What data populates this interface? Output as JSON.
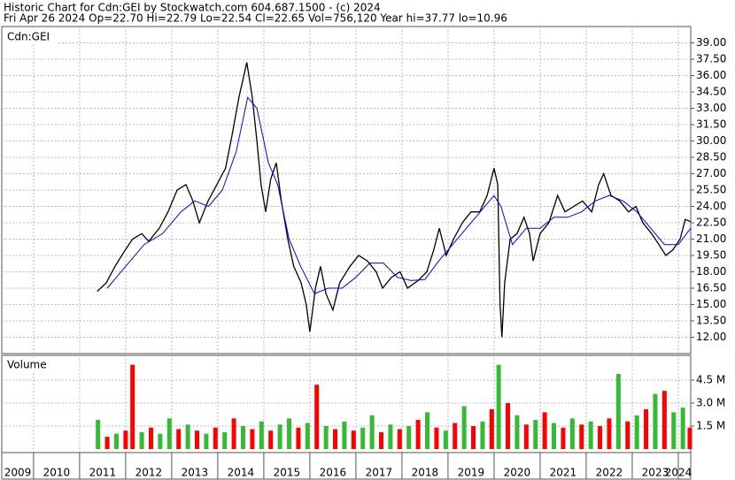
{
  "chart_data": [
    {
      "type": "line",
      "title": "Historic Chart for Cdn:GEI by Stockwatch.com 604.687.1500 - (c) 2024",
      "subtitle": "Fri Apr 26 2024  Op=22.70  Hi=22.79  Lo=22.54  Cl=22.65  Vol=756,120  Year hi=37.77  lo=10.96",
      "panel_label": "Cdn:GEI",
      "xlim": [
        2009.31,
        2024.27
      ],
      "ylim": [
        10.5,
        40.5
      ],
      "yticks": [
        {
          "value": 12,
          "label": "12.00"
        },
        {
          "value": 13.5,
          "label": "13.50"
        },
        {
          "value": 15,
          "label": "15.00"
        },
        {
          "value": 16.5,
          "label": "16.50"
        },
        {
          "value": 18,
          "label": "18.00"
        },
        {
          "value": 19.5,
          "label": "19.50"
        },
        {
          "value": 21,
          "label": "21.00"
        },
        {
          "value": 22.5,
          "label": "22.50"
        },
        {
          "value": 24,
          "label": "24.00"
        },
        {
          "value": 25.5,
          "label": "25.50"
        },
        {
          "value": 27,
          "label": "27.00"
        },
        {
          "value": 28.5,
          "label": "28.50"
        },
        {
          "value": 30,
          "label": "30.00"
        },
        {
          "value": 31.5,
          "label": "31.50"
        },
        {
          "value": 33,
          "label": "33.00"
        },
        {
          "value": 34.5,
          "label": "34.50"
        },
        {
          "value": 36,
          "label": "36.00"
        },
        {
          "value": 37.5,
          "label": "37.50"
        },
        {
          "value": 39,
          "label": "39.00"
        }
      ],
      "grid": true,
      "series": [
        {
          "color": "#000000",
          "x": [
            2011.38,
            2011.58,
            2011.77,
            2011.96,
            2012.15,
            2012.35,
            2012.5,
            2012.73,
            2012.92,
            2013.12,
            2013.31,
            2013.46,
            2013.6,
            2013.79,
            2013.98,
            2014.17,
            2014.31,
            2014.46,
            2014.63,
            2014.75,
            2014.85,
            2014.94,
            2015.04,
            2015.15,
            2015.27,
            2015.38,
            2015.52,
            2015.65,
            2015.81,
            2015.92,
            2016.0,
            2016.12,
            2016.23,
            2016.35,
            2016.5,
            2016.65,
            2016.87,
            2017.06,
            2017.25,
            2017.44,
            2017.58,
            2017.77,
            2017.96,
            2018.12,
            2018.35,
            2018.54,
            2018.69,
            2018.81,
            2018.96,
            2019.12,
            2019.31,
            2019.5,
            2019.69,
            2019.85,
            2020.0,
            2020.08,
            2020.13,
            2020.17,
            2020.23,
            2020.35,
            2020.5,
            2020.65,
            2020.77,
            2020.85,
            2021.0,
            2021.19,
            2021.38,
            2021.54,
            2021.73,
            2021.92,
            2022.12,
            2022.27,
            2022.38,
            2022.54,
            2022.73,
            2022.92,
            2023.08,
            2023.23,
            2023.42,
            2023.58,
            2023.73,
            2023.88,
            2024.04,
            2024.15,
            2024.27
          ],
          "values": [
            16.2,
            17,
            18.5,
            19.8,
            21,
            21.5,
            20.8,
            22,
            23.5,
            25.5,
            26,
            24.5,
            22.5,
            24.5,
            26,
            27.5,
            30.5,
            34,
            37.2,
            34,
            30,
            26,
            23.5,
            26.5,
            28,
            24.5,
            21,
            18.5,
            17,
            15,
            12.5,
            16.5,
            18.5,
            16,
            14.5,
            17,
            18.5,
            19.5,
            19,
            18,
            16.5,
            17.5,
            18,
            16.5,
            17.2,
            18,
            20,
            22,
            19.5,
            21,
            22.5,
            23.5,
            23.5,
            25,
            27.5,
            26,
            15,
            12,
            17,
            21,
            21.5,
            23,
            21.5,
            19,
            21.5,
            22.5,
            25,
            23.5,
            24,
            24.5,
            23.5,
            26,
            27,
            25,
            24.5,
            23.5,
            24,
            22.5,
            21.5,
            20.5,
            19.5,
            20,
            21,
            22.8,
            22.6
          ]
        },
        {
          "color": "#0000ff",
          "x": [
            2011.6,
            2012.0,
            2012.4,
            2012.8,
            2013.2,
            2013.5,
            2013.8,
            2014.1,
            2014.4,
            2014.65,
            2014.85,
            2015.1,
            2015.3,
            2015.55,
            2015.8,
            2016.1,
            2016.4,
            2016.7,
            2017.0,
            2017.3,
            2017.6,
            2017.9,
            2018.2,
            2018.5,
            2018.8,
            2019.1,
            2019.4,
            2019.7,
            2020.0,
            2020.15,
            2020.4,
            2020.7,
            2021.0,
            2021.3,
            2021.6,
            2021.9,
            2022.2,
            2022.5,
            2022.8,
            2023.1,
            2023.4,
            2023.7,
            2024.0,
            2024.27
          ],
          "values": [
            16.5,
            18.5,
            20.5,
            21.5,
            23.5,
            24.5,
            24,
            25.5,
            29,
            34,
            33,
            28,
            26,
            21,
            18.5,
            16,
            16.5,
            16.5,
            17.5,
            18.8,
            18.8,
            17.5,
            17.2,
            17.3,
            19,
            20.5,
            22,
            23.5,
            25,
            24,
            20.5,
            22,
            22,
            23,
            23,
            23.5,
            24.5,
            25,
            24.5,
            23.5,
            22,
            20.5,
            20.5,
            22
          ]
        }
      ]
    },
    {
      "type": "bar",
      "panel_label": "Volume",
      "xlim": [
        2009.31,
        2024.27
      ],
      "xticks": [
        2009,
        2010,
        2011,
        2012,
        2013,
        2014,
        2015,
        2016,
        2017,
        2018,
        2019,
        2020,
        2021,
        2022,
        2023,
        2024
      ],
      "ylim": [
        0,
        6000000
      ],
      "yticks": [
        {
          "value": 1500000,
          "label": "1.5 M"
        },
        {
          "value": 3000000,
          "label": "3.0 M"
        },
        {
          "value": 4500000,
          "label": "4.5 M"
        }
      ],
      "x": [
        2011.4,
        2011.6,
        2011.8,
        2012.0,
        2012.15,
        2012.35,
        2012.55,
        2012.75,
        2012.95,
        2013.15,
        2013.35,
        2013.55,
        2013.75,
        2013.95,
        2014.15,
        2014.35,
        2014.55,
        2014.75,
        2014.95,
        2015.15,
        2015.35,
        2015.55,
        2015.75,
        2015.95,
        2016.15,
        2016.35,
        2016.55,
        2016.75,
        2016.95,
        2017.15,
        2017.35,
        2017.55,
        2017.75,
        2017.95,
        2018.15,
        2018.35,
        2018.55,
        2018.75,
        2018.95,
        2019.15,
        2019.35,
        2019.55,
        2019.75,
        2019.95,
        2020.1,
        2020.3,
        2020.5,
        2020.7,
        2020.9,
        2021.1,
        2021.3,
        2021.5,
        2021.7,
        2021.9,
        2022.1,
        2022.3,
        2022.5,
        2022.7,
        2022.9,
        2023.1,
        2023.3,
        2023.5,
        2023.7,
        2023.9,
        2024.1,
        2024.25
      ],
      "values": [
        1900000,
        800000,
        1000000,
        1200000,
        5500000,
        1100000,
        1400000,
        1000000,
        2000000,
        1300000,
        1600000,
        1200000,
        1000000,
        1400000,
        1100000,
        2000000,
        1500000,
        1300000,
        1800000,
        1200000,
        1600000,
        2000000,
        1400000,
        1700000,
        4200000,
        1500000,
        1300000,
        1800000,
        1200000,
        1400000,
        2200000,
        1100000,
        1600000,
        1300000,
        1500000,
        1900000,
        2400000,
        1400000,
        1200000,
        1700000,
        2800000,
        1500000,
        1800000,
        2600000,
        5500000,
        3000000,
        2200000,
        1600000,
        1900000,
        2400000,
        1700000,
        1400000,
        2000000,
        1600000,
        1800000,
        1500000,
        2000000,
        4900000,
        1800000,
        2200000,
        2600000,
        3600000,
        3800000,
        2400000,
        2700000,
        1400000
      ],
      "colors": [
        "#33bb33",
        "#ff0000",
        "#33bb33",
        "#ff0000",
        "#ff0000",
        "#33bb33",
        "#ff0000",
        "#33bb33",
        "#33bb33",
        "#ff0000",
        "#33bb33",
        "#ff0000",
        "#33bb33",
        "#ff0000",
        "#33bb33",
        "#ff0000",
        "#33bb33",
        "#ff0000",
        "#33bb33",
        "#ff0000",
        "#33bb33",
        "#33bb33",
        "#ff0000",
        "#33bb33",
        "#ff0000",
        "#33bb33",
        "#ff0000",
        "#33bb33",
        "#ff0000",
        "#33bb33",
        "#33bb33",
        "#ff0000",
        "#33bb33",
        "#ff0000",
        "#33bb33",
        "#ff0000",
        "#33bb33",
        "#ff0000",
        "#33bb33",
        "#ff0000",
        "#33bb33",
        "#ff0000",
        "#33bb33",
        "#ff0000",
        "#33bb33",
        "#ff0000",
        "#33bb33",
        "#ff0000",
        "#33bb33",
        "#ff0000",
        "#33bb33",
        "#ff0000",
        "#33bb33",
        "#ff0000",
        "#33bb33",
        "#ff0000",
        "#ff0000",
        "#33bb33",
        "#ff0000",
        "#33bb33",
        "#ff0000",
        "#33bb33",
        "#ff0000",
        "#33bb33",
        "#33bb33",
        "#ff0000"
      ]
    }
  ]
}
